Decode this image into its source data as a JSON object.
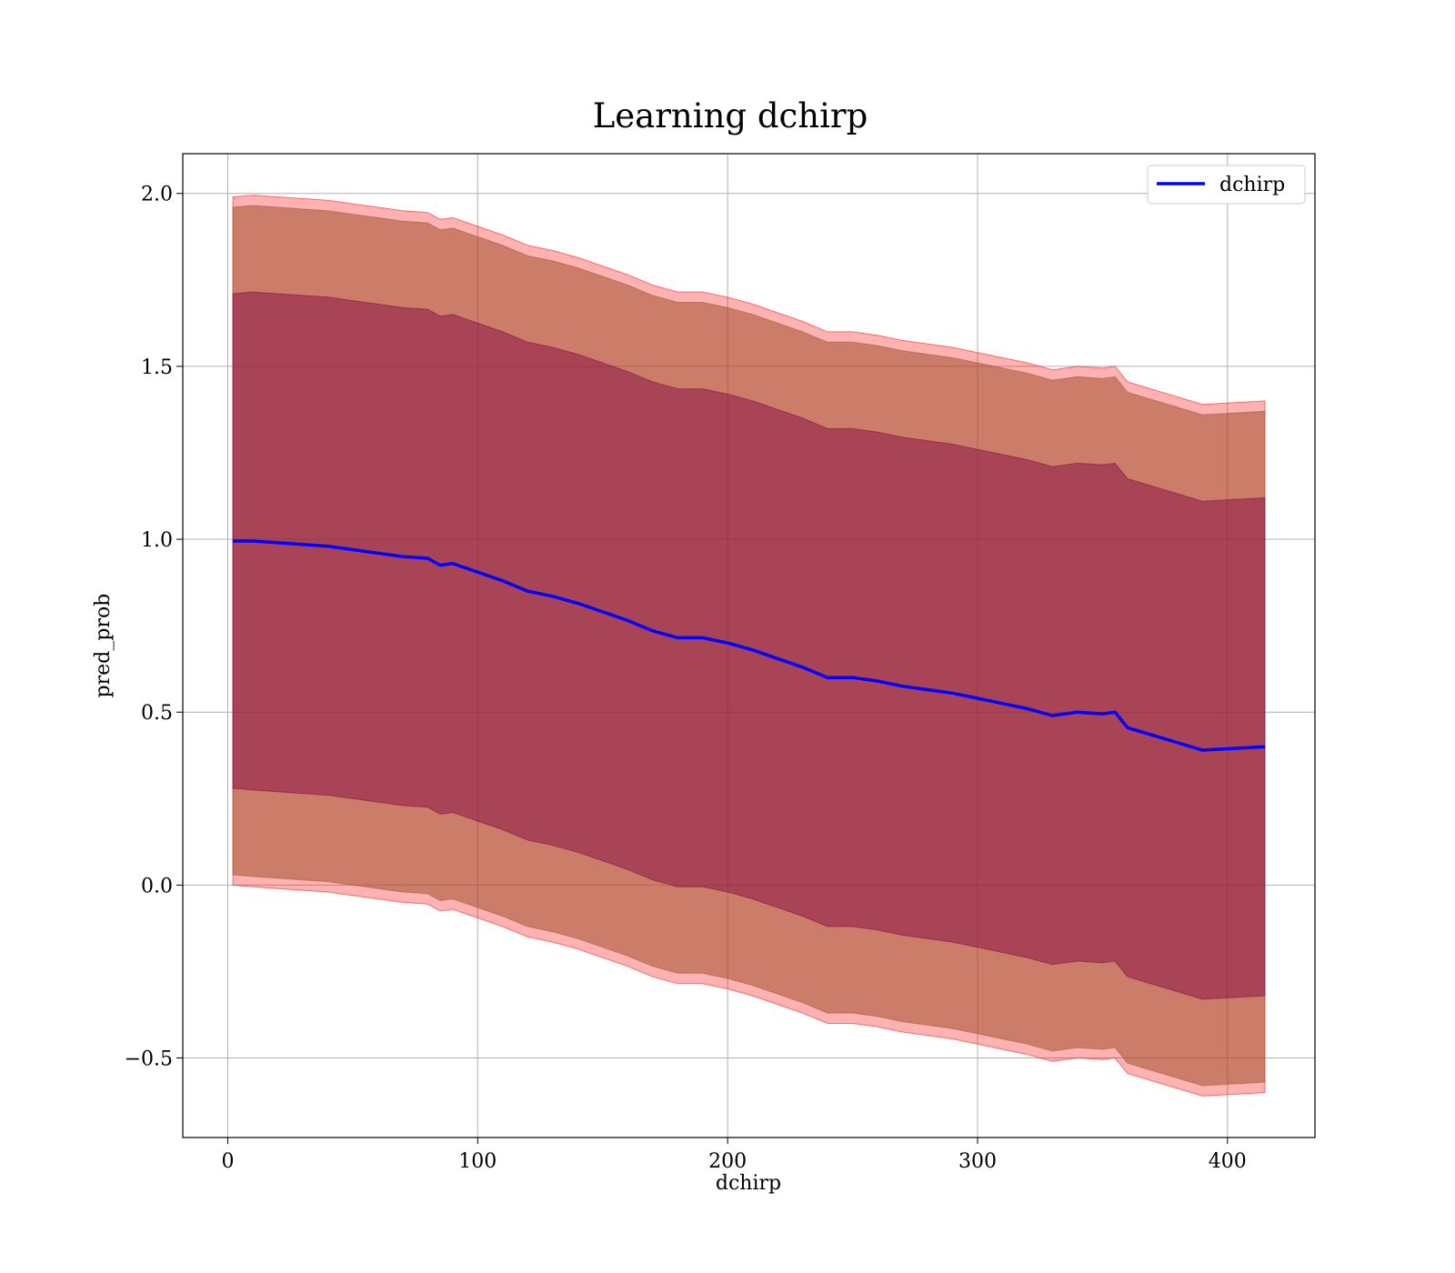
{
  "chart_data": {
    "type": "line",
    "title": "Learning dchirp",
    "xlabel": "dchirp",
    "ylabel": "pred_prob",
    "xlim": [
      -18,
      435
    ],
    "ylim": [
      -0.73,
      2.115
    ],
    "xticks": [
      0,
      100,
      200,
      300,
      400
    ],
    "xtick_labels": [
      "0",
      "100",
      "200",
      "300",
      "400"
    ],
    "yticks": [
      -0.5,
      0.0,
      0.5,
      1.0,
      1.5,
      2.0
    ],
    "ytick_labels": [
      "−0.5",
      "0.0",
      "0.5",
      "1.0",
      "1.5",
      "2.0"
    ],
    "grid": true,
    "legend": {
      "position": "top-right",
      "entries": [
        "dchirp"
      ]
    },
    "colors": {
      "line": "#0000ff",
      "outer_band": "#ff0000",
      "mid_band": "#a0522d",
      "inner_band": "#800040"
    },
    "x": [
      2,
      10,
      20,
      30,
      40,
      50,
      60,
      70,
      80,
      85,
      90,
      100,
      110,
      120,
      130,
      140,
      150,
      160,
      170,
      180,
      190,
      200,
      210,
      220,
      230,
      240,
      250,
      260,
      270,
      280,
      290,
      300,
      310,
      320,
      330,
      340,
      350,
      355,
      360,
      390,
      415
    ],
    "series": [
      {
        "name": "dchirp",
        "values": [
          0.995,
          0.995,
          0.99,
          0.985,
          0.98,
          0.97,
          0.96,
          0.95,
          0.945,
          0.925,
          0.93,
          0.905,
          0.88,
          0.85,
          0.835,
          0.815,
          0.79,
          0.765,
          0.735,
          0.715,
          0.715,
          0.7,
          0.68,
          0.655,
          0.63,
          0.6,
          0.6,
          0.59,
          0.575,
          0.565,
          0.555,
          0.54,
          0.525,
          0.51,
          0.49,
          0.5,
          0.495,
          0.5,
          0.455,
          0.39,
          0.4
        ]
      }
    ],
    "bands": [
      {
        "name": "outer",
        "lower": [
          0.0,
          -0.005,
          -0.01,
          -0.015,
          -0.02,
          -0.03,
          -0.04,
          -0.05,
          -0.055,
          -0.075,
          -0.07,
          -0.095,
          -0.12,
          -0.15,
          -0.165,
          -0.185,
          -0.21,
          -0.235,
          -0.265,
          -0.285,
          -0.285,
          -0.3,
          -0.32,
          -0.345,
          -0.37,
          -0.4,
          -0.4,
          -0.41,
          -0.425,
          -0.435,
          -0.445,
          -0.46,
          -0.475,
          -0.49,
          -0.51,
          -0.5,
          -0.505,
          -0.5,
          -0.545,
          -0.61,
          -0.6
        ],
        "upper": [
          1.99,
          1.995,
          1.99,
          1.985,
          1.98,
          1.97,
          1.96,
          1.95,
          1.945,
          1.925,
          1.93,
          1.905,
          1.88,
          1.85,
          1.835,
          1.815,
          1.79,
          1.765,
          1.735,
          1.715,
          1.715,
          1.7,
          1.68,
          1.655,
          1.63,
          1.6,
          1.6,
          1.59,
          1.575,
          1.565,
          1.555,
          1.54,
          1.525,
          1.51,
          1.49,
          1.5,
          1.495,
          1.5,
          1.455,
          1.39,
          1.4
        ]
      },
      {
        "name": "middle",
        "lower": [
          0.03,
          0.025,
          0.02,
          0.015,
          0.01,
          0.0,
          -0.01,
          -0.02,
          -0.025,
          -0.045,
          -0.04,
          -0.065,
          -0.09,
          -0.12,
          -0.135,
          -0.155,
          -0.18,
          -0.205,
          -0.235,
          -0.255,
          -0.255,
          -0.27,
          -0.29,
          -0.315,
          -0.34,
          -0.37,
          -0.37,
          -0.38,
          -0.395,
          -0.405,
          -0.415,
          -0.43,
          -0.445,
          -0.46,
          -0.48,
          -0.47,
          -0.475,
          -0.47,
          -0.515,
          -0.58,
          -0.57
        ],
        "upper": [
          1.96,
          1.965,
          1.96,
          1.955,
          1.95,
          1.94,
          1.93,
          1.92,
          1.915,
          1.895,
          1.9,
          1.875,
          1.85,
          1.82,
          1.805,
          1.785,
          1.76,
          1.735,
          1.705,
          1.685,
          1.685,
          1.67,
          1.65,
          1.625,
          1.6,
          1.57,
          1.57,
          1.56,
          1.545,
          1.535,
          1.525,
          1.51,
          1.495,
          1.48,
          1.46,
          1.47,
          1.465,
          1.47,
          1.425,
          1.36,
          1.37
        ]
      },
      {
        "name": "inner",
        "lower": [
          0.28,
          0.275,
          0.27,
          0.265,
          0.26,
          0.25,
          0.24,
          0.23,
          0.225,
          0.205,
          0.21,
          0.185,
          0.16,
          0.13,
          0.115,
          0.095,
          0.07,
          0.045,
          0.015,
          -0.005,
          -0.005,
          -0.02,
          -0.04,
          -0.065,
          -0.09,
          -0.12,
          -0.12,
          -0.13,
          -0.145,
          -0.155,
          -0.165,
          -0.18,
          -0.195,
          -0.21,
          -0.23,
          -0.22,
          -0.225,
          -0.22,
          -0.265,
          -0.33,
          -0.32
        ],
        "upper": [
          1.71,
          1.715,
          1.71,
          1.705,
          1.7,
          1.69,
          1.68,
          1.67,
          1.665,
          1.645,
          1.65,
          1.625,
          1.6,
          1.57,
          1.555,
          1.535,
          1.51,
          1.485,
          1.455,
          1.435,
          1.435,
          1.42,
          1.4,
          1.375,
          1.35,
          1.32,
          1.32,
          1.31,
          1.295,
          1.285,
          1.275,
          1.26,
          1.245,
          1.23,
          1.21,
          1.22,
          1.215,
          1.22,
          1.175,
          1.11,
          1.12
        ]
      }
    ]
  }
}
